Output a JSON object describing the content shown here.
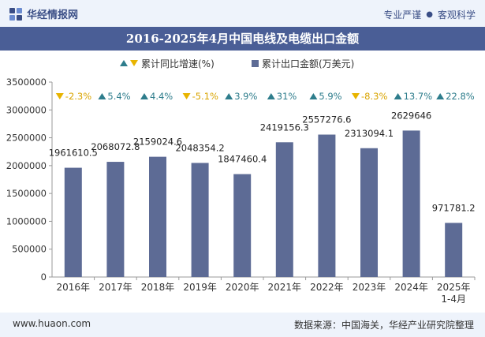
{
  "header": {
    "brand": "华经情报网",
    "tag_left": "专业严谨",
    "separator": "●",
    "tag_right": "客观科学"
  },
  "footer": {
    "site": "www.huaon.com",
    "source": "数据来源：中国海关，华经产业研究院整理"
  },
  "colors": {
    "bar": "#5d6b95",
    "up": "#2e7d8c",
    "down": "#e8b400",
    "title_bg": "#4a5e96",
    "band_bg": "#eef3fb"
  },
  "chart_data": {
    "type": "bar",
    "title": "2016-2025年4月中国电线及电缆出口金额",
    "categories": [
      "2016年",
      "2017年",
      "2018年",
      "2019年",
      "2020年",
      "2021年",
      "2022年",
      "2023年",
      "2024年",
      "2025年\n1-4月"
    ],
    "series": [
      {
        "name": "累计出口金额(万美元)",
        "values": [
          1961610.5,
          2068072.8,
          2159024.6,
          2048354.2,
          1847460.4,
          2419156.3,
          2557276.6,
          2313094.1,
          2629646,
          971781.2
        ],
        "value_labels": [
          "1961610.5",
          "2068072.8",
          "2159024.6",
          "2048354.2",
          "1847460.4",
          "2419156.3",
          "2557276.6",
          "2313094.1",
          "2629646",
          "971781.2"
        ]
      },
      {
        "name": "累计同比增速(%)",
        "values": [
          -2.3,
          5.4,
          4.4,
          -5.1,
          3.9,
          31,
          5.9,
          -8.3,
          13.7,
          22.8
        ],
        "value_labels": [
          "-2.3%",
          "5.4%",
          "4.4%",
          "-5.1%",
          "3.9%",
          "31%",
          "5.9%",
          "-8.3%",
          "13.7%",
          "22.8%"
        ]
      }
    ],
    "ylim": [
      0,
      3500000
    ],
    "yticks": [
      0,
      500000,
      1000000,
      1500000,
      2000000,
      2500000,
      3000000,
      3500000
    ],
    "ytick_labels": [
      "0",
      "500000",
      "1000000",
      "1500000",
      "2000000",
      "2500000",
      "3000000",
      "3500000"
    ],
    "legend": {
      "growth": "累计同比增速(%)",
      "amount": "累计出口金额(万美元)",
      "placement": "top-center"
    },
    "grid": false
  }
}
